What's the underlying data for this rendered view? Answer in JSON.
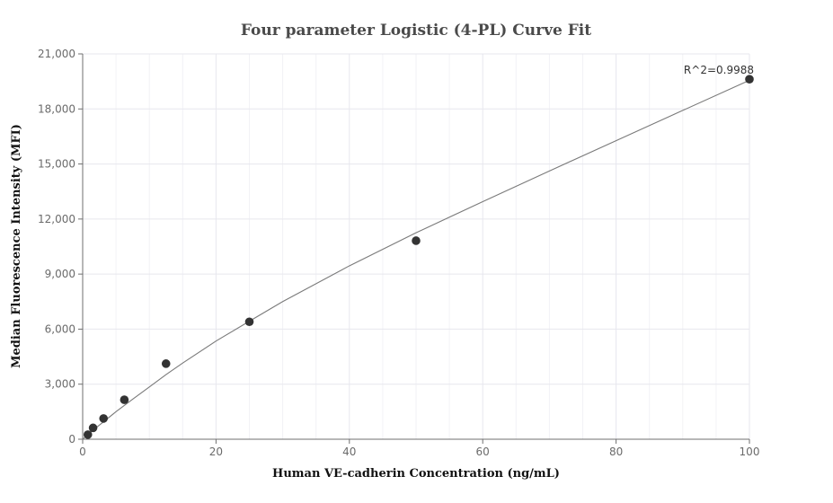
{
  "chart_data": {
    "type": "scatter",
    "title": "Four parameter Logistic (4-PL) Curve Fit",
    "xlabel": "Human VE-cadherin Concentration (ng/mL)",
    "ylabel": "Median Fluorescence Intensity (MFI)",
    "xlim": [
      0,
      100
    ],
    "ylim": [
      0,
      21000
    ],
    "x_ticks": [
      0,
      20,
      40,
      60,
      80,
      100
    ],
    "x_tick_labels": [
      "0",
      "20",
      "40",
      "60",
      "80",
      "100"
    ],
    "y_ticks": [
      0,
      3000,
      6000,
      9000,
      12000,
      15000,
      18000,
      21000
    ],
    "y_tick_labels": [
      "0",
      "3,000",
      "6,000",
      "9,000",
      "12,000",
      "15,000",
      "18,000",
      "21,000"
    ],
    "grid": true,
    "points": [
      {
        "x": 0.78,
        "y": 250
      },
      {
        "x": 1.56,
        "y": 620
      },
      {
        "x": 3.13,
        "y": 1130
      },
      {
        "x": 6.25,
        "y": 2150
      },
      {
        "x": 12.5,
        "y": 4120
      },
      {
        "x": 25,
        "y": 6400
      },
      {
        "x": 50,
        "y": 10820
      },
      {
        "x": 100,
        "y": 19620
      }
    ],
    "fit_curve": [
      {
        "x": 0,
        "y": 0
      },
      {
        "x": 1,
        "y": 330
      },
      {
        "x": 2.5,
        "y": 770
      },
      {
        "x": 5,
        "y": 1500
      },
      {
        "x": 7.5,
        "y": 2180
      },
      {
        "x": 10,
        "y": 2850
      },
      {
        "x": 12.5,
        "y": 3520
      },
      {
        "x": 15,
        "y": 4150
      },
      {
        "x": 20,
        "y": 5350
      },
      {
        "x": 25,
        "y": 6430
      },
      {
        "x": 30,
        "y": 7500
      },
      {
        "x": 40,
        "y": 9450
      },
      {
        "x": 50,
        "y": 11250
      },
      {
        "x": 60,
        "y": 12950
      },
      {
        "x": 70,
        "y": 14620
      },
      {
        "x": 80,
        "y": 16270
      },
      {
        "x": 90,
        "y": 17920
      },
      {
        "x": 100,
        "y": 19560
      }
    ],
    "annotation": "R^2=0.9988",
    "point_color": "#333333",
    "curve_color": "#7a7a7a"
  }
}
